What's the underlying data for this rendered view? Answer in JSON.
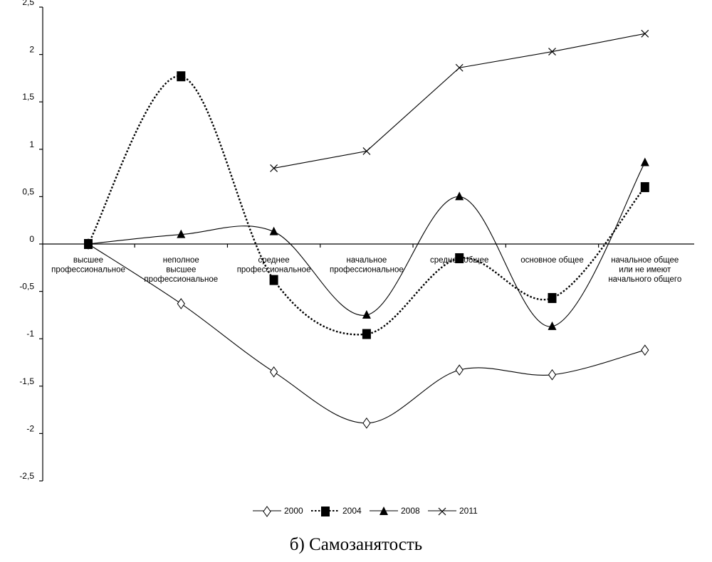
{
  "caption": "б) Самозанятость",
  "chart_data": {
    "type": "line",
    "title": "",
    "xlabel": "",
    "ylabel": "",
    "ylim": [
      -2.5,
      2.5
    ],
    "yticks": [
      2.5,
      2,
      1.5,
      1,
      0.5,
      0,
      -0.5,
      -1,
      -1.5,
      -2,
      -2.5
    ],
    "ytick_labels": [
      "2,5",
      "2",
      "1,5",
      "1",
      "0,5",
      "0",
      "-0,5",
      "-1",
      "-1,5",
      "-2",
      "-2,5"
    ],
    "grid": false,
    "legend_position": "bottom",
    "categories": [
      [
        "высшее",
        "профессиональное"
      ],
      [
        "неполное",
        "высшее",
        "профессиональное"
      ],
      [
        "среднее",
        "профессиональное"
      ],
      [
        "начальное",
        "профессиональное"
      ],
      [
        "среднее общее"
      ],
      [
        "основное общее"
      ],
      [
        "начальное общее",
        "или не имеют",
        "начального общего"
      ]
    ],
    "series": [
      {
        "name": "2000",
        "values": [
          0,
          -0.63,
          -1.35,
          -1.89,
          -1.33,
          -1.38,
          -1.12
        ],
        "marker": "diamond-open",
        "dash": "solid",
        "smooth": true
      },
      {
        "name": "2004",
        "values": [
          0,
          1.77,
          -0.38,
          -0.95,
          -0.15,
          -0.57,
          0.6
        ],
        "marker": "square",
        "dash": "dotted",
        "smooth": true
      },
      {
        "name": "2008",
        "values": [
          0,
          0.1,
          0.13,
          -0.75,
          0.5,
          -0.87,
          0.86
        ],
        "marker": "triangle",
        "dash": "solid",
        "smooth": true
      },
      {
        "name": "2011",
        "values": [
          null,
          null,
          0.8,
          0.98,
          1.86,
          2.03,
          2.22
        ],
        "marker": "x",
        "dash": "solid",
        "smooth": false
      }
    ]
  }
}
